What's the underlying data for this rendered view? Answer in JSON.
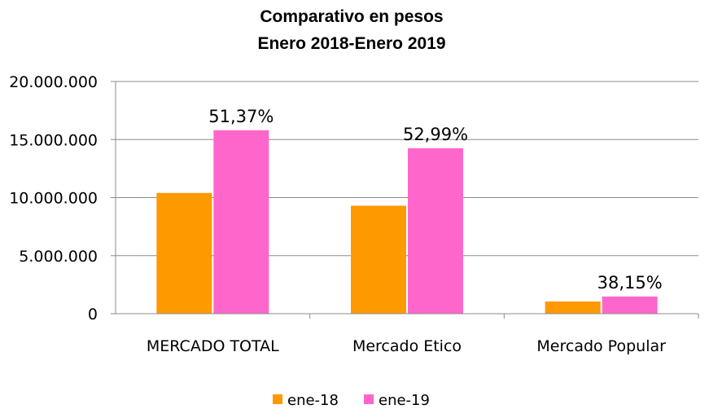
{
  "chart_data": {
    "type": "bar",
    "title_lines": [
      "Comparativo en pesos",
      "Enero 2018-Enero 2019"
    ],
    "categories": [
      "MERCADO TOTAL",
      "Mercado Etico",
      "Mercado Popular"
    ],
    "series": [
      {
        "name": "ene-18",
        "color": "#FF9900",
        "values": [
          10400000,
          9300000,
          1050000
        ]
      },
      {
        "name": "ene-19",
        "color": "#FF66CC",
        "values": [
          15800000,
          14250000,
          1480000
        ]
      }
    ],
    "data_labels": [
      "51,37%",
      "52,99%",
      "38,15%"
    ],
    "ylim": [
      0,
      20000000
    ],
    "yticks": [
      0,
      5000000,
      10000000,
      15000000,
      20000000
    ],
    "ytick_labels": [
      "0",
      "5.000.000",
      "10.000.000",
      "15.000.000",
      "20.000.000"
    ],
    "grid": true,
    "legend_position": "bottom"
  }
}
